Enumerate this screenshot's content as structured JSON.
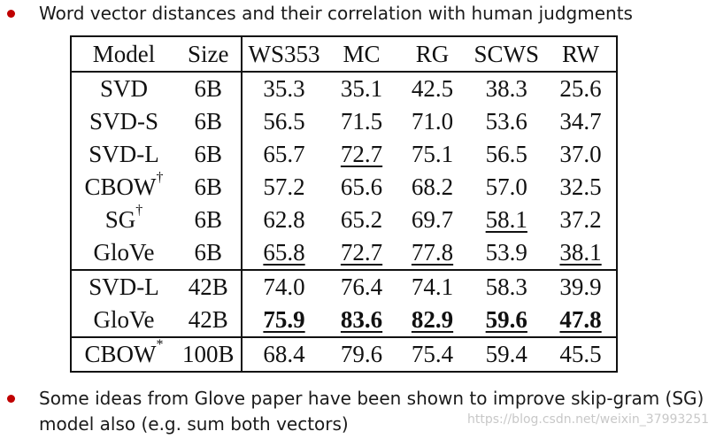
{
  "bullets": {
    "top": "Word vector distances and their correlation with human judgments",
    "bottom_line1": "Some ideas from Glove paper have been shown to improve skip-gram (SG)",
    "bottom_line2": "model also (e.g. sum both vectors)"
  },
  "table": {
    "headers": [
      "Model",
      "Size",
      "WS353",
      "MC",
      "RG",
      "SCWS",
      "RW"
    ],
    "groups": [
      [
        {
          "model": "SVD",
          "sup": "",
          "size": "6B",
          "values": [
            "35.3",
            "35.1",
            "42.5",
            "38.3",
            "25.6"
          ],
          "style": [
            "",
            "",
            "",
            "",
            ""
          ]
        },
        {
          "model": "SVD-S",
          "sup": "",
          "size": "6B",
          "values": [
            "56.5",
            "71.5",
            "71.0",
            "53.6",
            "34.7"
          ],
          "style": [
            "",
            "",
            "",
            "",
            ""
          ]
        },
        {
          "model": "SVD-L",
          "sup": "",
          "size": "6B",
          "values": [
            "65.7",
            "72.7",
            "75.1",
            "56.5",
            "37.0"
          ],
          "style": [
            "",
            "u",
            "",
            "",
            ""
          ]
        },
        {
          "model": "CBOW",
          "sup": "†",
          "size": "6B",
          "values": [
            "57.2",
            "65.6",
            "68.2",
            "57.0",
            "32.5"
          ],
          "style": [
            "",
            "",
            "",
            "",
            ""
          ]
        },
        {
          "model": "SG",
          "sup": "†",
          "size": "6B",
          "values": [
            "62.8",
            "65.2",
            "69.7",
            "58.1",
            "37.2"
          ],
          "style": [
            "",
            "",
            "",
            "u",
            ""
          ]
        },
        {
          "model": "GloVe",
          "sup": "",
          "size": "6B",
          "values": [
            "65.8",
            "72.7",
            "77.8",
            "53.9",
            "38.1"
          ],
          "style": [
            "u",
            "u",
            "u",
            "",
            "u"
          ]
        }
      ],
      [
        {
          "model": "SVD-L",
          "sup": "",
          "size": "42B",
          "values": [
            "74.0",
            "76.4",
            "74.1",
            "58.3",
            "39.9"
          ],
          "style": [
            "",
            "",
            "",
            "",
            ""
          ]
        },
        {
          "model": "GloVe",
          "sup": "",
          "size": "42B",
          "values": [
            "75.9",
            "83.6",
            "82.9",
            "59.6",
            "47.8"
          ],
          "style": [
            "bu",
            "bu",
            "bu",
            "bu",
            "bu"
          ]
        }
      ],
      [
        {
          "model": "CBOW",
          "sup": "*",
          "size": "100B",
          "values": [
            "68.4",
            "79.6",
            "75.4",
            "59.4",
            "45.5"
          ],
          "style": [
            "",
            "",
            "",
            "",
            ""
          ]
        }
      ]
    ]
  },
  "watermark": "https://blog.csdn.net/weixin_37993251",
  "colors": {
    "bullet": "#c00000",
    "text": "#1a1a1a",
    "watermark": "#c8c8c8"
  }
}
